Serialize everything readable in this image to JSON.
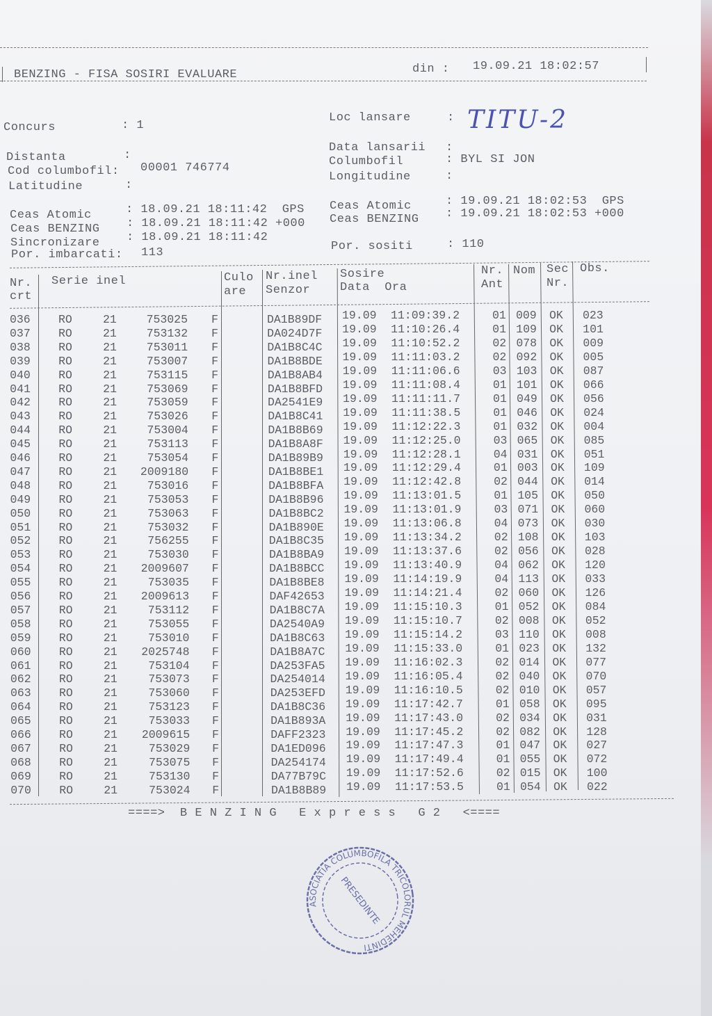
{
  "header": {
    "title": "BENZING - FISA SOSIRI EVALUARE",
    "din_label": "din :",
    "din_value": "19.09.21 18:02:57"
  },
  "info": {
    "concurs_label": "Concurs",
    "concurs_value": ": 1",
    "loc_lansare_label": "Loc lansare",
    "loc_lansare_sep": ":",
    "loc_lansare_value": "TITU-2",
    "distanta_label": "Distanta",
    "distanta_sep": ":",
    "data_lansarii_label": "Data lansarii",
    "data_lansarii_sep": ":",
    "cod_label": "Cod columbofil:",
    "cod_value": "00001 746774",
    "columbofil_label": "Columbofil",
    "columbofil_value": ": BYL SI JON",
    "latitudine_label": "Latitudine",
    "latitudine_sep": ":",
    "longitudine_label": "Longitudine",
    "longitudine_sep": ":",
    "ceas_atomic_left_label": "Ceas Atomic",
    "ceas_atomic_left_value": ": 18.09.21 18:11:42  GPS",
    "ceas_benzing_left_label": "Ceas BENZING",
    "ceas_benzing_left_value": ": 18.09.21 18:11:42 +000",
    "sincronizare_label": "Sincronizare",
    "sincronizare_value": ": 18.09.21 18:11:42",
    "imbarcati_label": "Por. imbarcati:",
    "imbarcati_value": "113",
    "ceas_atomic_right_label": "Ceas Atomic",
    "ceas_atomic_right_value": ": 19.09.21 18:02:53  GPS",
    "ceas_benzing_right_label": "Ceas BENZING",
    "ceas_benzing_right_value": ": 19.09.21 18:02:53 +000",
    "sositi_label": "Por. sositi",
    "sositi_value": ": 110"
  },
  "table": {
    "headers": {
      "nr1": "Nr.",
      "nr2": "crt",
      "serie": "Serie inel",
      "culo1": "Culo",
      "culo2": "are",
      "inel1": "Nr.inel",
      "inel2": "Senzor",
      "sosire1": "Sosire",
      "sosire2": "Data  Ora",
      "ant1": "Nr.",
      "ant2": "Ant",
      "nom": "Nom",
      "sec1": "Sec",
      "sec2": "Nr.",
      "obs": "Obs."
    },
    "rows": [
      [
        "036",
        "RO",
        "21",
        "753025",
        "F",
        "DA1B89DF",
        "19.09",
        "11:09:39.2",
        "01",
        "009",
        "OK",
        "023"
      ],
      [
        "037",
        "RO",
        "21",
        "753132",
        "F",
        "DA024D7F",
        "19.09",
        "11:10:26.4",
        "01",
        "109",
        "OK",
        "101"
      ],
      [
        "038",
        "RO",
        "21",
        "753011",
        "F",
        "DA1B8C4C",
        "19.09",
        "11:10:52.2",
        "02",
        "078",
        "OK",
        "009"
      ],
      [
        "039",
        "RO",
        "21",
        "753007",
        "F",
        "DA1B8BDE",
        "19.09",
        "11:11:03.2",
        "02",
        "092",
        "OK",
        "005"
      ],
      [
        "040",
        "RO",
        "21",
        "753115",
        "F",
        "DA1B8AB4",
        "19.09",
        "11:11:06.6",
        "03",
        "103",
        "OK",
        "087"
      ],
      [
        "041",
        "RO",
        "21",
        "753069",
        "F",
        "DA1B8BFD",
        "19.09",
        "11:11:08.4",
        "01",
        "101",
        "OK",
        "066"
      ],
      [
        "042",
        "RO",
        "21",
        "753059",
        "F",
        "DA2541E9",
        "19.09",
        "11:11:11.7",
        "01",
        "049",
        "OK",
        "056"
      ],
      [
        "043",
        "RO",
        "21",
        "753026",
        "F",
        "DA1B8C41",
        "19.09",
        "11:11:38.5",
        "01",
        "046",
        "OK",
        "024"
      ],
      [
        "044",
        "RO",
        "21",
        "753004",
        "F",
        "DA1B8B69",
        "19.09",
        "11:12:22.3",
        "01",
        "032",
        "OK",
        "004"
      ],
      [
        "045",
        "RO",
        "21",
        "753113",
        "F",
        "DA1B8A8F",
        "19.09",
        "11:12:25.0",
        "03",
        "065",
        "OK",
        "085"
      ],
      [
        "046",
        "RO",
        "21",
        "753054",
        "F",
        "DA1B89B9",
        "19.09",
        "11:12:28.1",
        "04",
        "031",
        "OK",
        "051"
      ],
      [
        "047",
        "RO",
        "21",
        "2009180",
        "F",
        "DA1B8BE1",
        "19.09",
        "11:12:29.4",
        "01",
        "003",
        "OK",
        "109"
      ],
      [
        "048",
        "RO",
        "21",
        "753016",
        "F",
        "DA1B8BFA",
        "19.09",
        "11:12:42.8",
        "02",
        "044",
        "OK",
        "014"
      ],
      [
        "049",
        "RO",
        "21",
        "753053",
        "F",
        "DA1B8B96",
        "19.09",
        "11:13:01.5",
        "01",
        "105",
        "OK",
        "050"
      ],
      [
        "050",
        "RO",
        "21",
        "753063",
        "F",
        "DA1B8BC2",
        "19.09",
        "11:13:01.9",
        "03",
        "071",
        "OK",
        "060"
      ],
      [
        "051",
        "RO",
        "21",
        "753032",
        "F",
        "DA1B890E",
        "19.09",
        "11:13:06.8",
        "04",
        "073",
        "OK",
        "030"
      ],
      [
        "052",
        "RO",
        "21",
        "756255",
        "F",
        "DA1B8C35",
        "19.09",
        "11:13:34.2",
        "02",
        "108",
        "OK",
        "103"
      ],
      [
        "053",
        "RO",
        "21",
        "753030",
        "F",
        "DA1B8BA9",
        "19.09",
        "11:13:37.6",
        "02",
        "056",
        "OK",
        "028"
      ],
      [
        "054",
        "RO",
        "21",
        "2009607",
        "F",
        "DA1B8BCC",
        "19.09",
        "11:13:40.9",
        "04",
        "062",
        "OK",
        "120"
      ],
      [
        "055",
        "RO",
        "21",
        "753035",
        "F",
        "DA1B8BE8",
        "19.09",
        "11:14:19.9",
        "04",
        "113",
        "OK",
        "033"
      ],
      [
        "056",
        "RO",
        "21",
        "2009613",
        "F",
        "DAF42653",
        "19.09",
        "11:14:21.4",
        "02",
        "060",
        "OK",
        "126"
      ],
      [
        "057",
        "RO",
        "21",
        "753112",
        "F",
        "DA1B8C7A",
        "19.09",
        "11:15:10.3",
        "01",
        "052",
        "OK",
        "084"
      ],
      [
        "058",
        "RO",
        "21",
        "753055",
        "F",
        "DA2540A9",
        "19.09",
        "11:15:10.7",
        "02",
        "008",
        "OK",
        "052"
      ],
      [
        "059",
        "RO",
        "21",
        "753010",
        "F",
        "DA1B8C63",
        "19.09",
        "11:15:14.2",
        "03",
        "110",
        "OK",
        "008"
      ],
      [
        "060",
        "RO",
        "21",
        "2025748",
        "F",
        "DA1B8A7C",
        "19.09",
        "11:15:33.0",
        "01",
        "023",
        "OK",
        "132"
      ],
      [
        "061",
        "RO",
        "21",
        "753104",
        "F",
        "DA253FA5",
        "19.09",
        "11:16:02.3",
        "02",
        "014",
        "OK",
        "077"
      ],
      [
        "062",
        "RO",
        "21",
        "753073",
        "F",
        "DA254014",
        "19.09",
        "11:16:05.4",
        "02",
        "040",
        "OK",
        "070"
      ],
      [
        "063",
        "RO",
        "21",
        "753060",
        "F",
        "DA253EFD",
        "19.09",
        "11:16:10.5",
        "02",
        "010",
        "OK",
        "057"
      ],
      [
        "064",
        "RO",
        "21",
        "753123",
        "F",
        "DA1B8C36",
        "19.09",
        "11:17:42.7",
        "01",
        "058",
        "OK",
        "095"
      ],
      [
        "065",
        "RO",
        "21",
        "753033",
        "F",
        "DA1B893A",
        "19.09",
        "11:17:43.0",
        "02",
        "034",
        "OK",
        "031"
      ],
      [
        "066",
        "RO",
        "21",
        "2009615",
        "F",
        "DAFF2323",
        "19.09",
        "11:17:45.2",
        "02",
        "082",
        "OK",
        "128"
      ],
      [
        "067",
        "RO",
        "21",
        "753029",
        "F",
        "DA1ED096",
        "19.09",
        "11:17:47.3",
        "01",
        "047",
        "OK",
        "027"
      ],
      [
        "068",
        "RO",
        "21",
        "753075",
        "F",
        "DA254174",
        "19.09",
        "11:17:49.4",
        "01",
        "055",
        "OK",
        "072"
      ],
      [
        "069",
        "RO",
        "21",
        "753130",
        "F",
        "DA77B79C",
        "19.09",
        "11:17:52.6",
        "02",
        "015",
        "OK",
        "100"
      ],
      [
        "070",
        "RO",
        "21",
        "753024",
        "F",
        "DA1B8B89",
        "19.09",
        "11:17:53.5",
        "01",
        "054",
        "OK",
        "022"
      ]
    ]
  },
  "footer": "====>  B E N Z I N G   E x p r e s s   G 2   <====",
  "stamp": {
    "outer": "ASOCIATIA COLUMBOFILA TRICOLORUL MEHEDINTI",
    "inner": "PRESEDINTE",
    "color": "#6a6fa8"
  }
}
